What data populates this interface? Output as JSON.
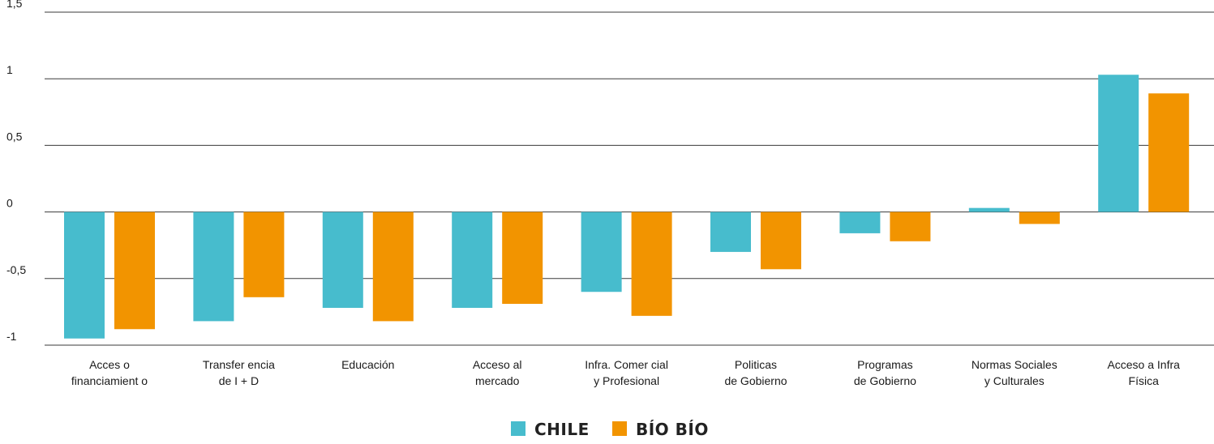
{
  "chart_data": {
    "type": "bar",
    "title": "",
    "xlabel": "",
    "ylabel": "",
    "ylim": [
      -1,
      1.5
    ],
    "y_ticks": [
      "1,5",
      "1",
      "0,5",
      "0",
      "-0,5",
      "-1"
    ],
    "y_tick_values": [
      1.5,
      1,
      0.5,
      0,
      -0.5,
      -1
    ],
    "grid": true,
    "legend_placement": "bottom-center",
    "categories": [
      [
        "Acces o",
        "financiamient o"
      ],
      [
        "Transfer encia",
        "de I + D"
      ],
      [
        "Educación"
      ],
      [
        "Acceso al",
        "mercado"
      ],
      [
        "Infra. Comer cial",
        "y Profesional"
      ],
      [
        "Politicas",
        "de Gobierno"
      ],
      [
        "Programas",
        "de Gobierno"
      ],
      [
        "Normas Sociales",
        "y Culturales"
      ],
      [
        "Acceso a Infra",
        "Física"
      ]
    ],
    "series": [
      {
        "name": "CHILE",
        "color": "#47bccd",
        "values": [
          -0.95,
          -0.82,
          -0.72,
          -0.72,
          -0.6,
          -0.3,
          -0.16,
          0.03,
          1.03
        ]
      },
      {
        "name": "BÍO BÍO",
        "color": "#f29400",
        "values": [
          -0.88,
          -0.64,
          -0.82,
          -0.69,
          -0.78,
          -0.43,
          -0.22,
          -0.09,
          0.89
        ]
      }
    ]
  }
}
